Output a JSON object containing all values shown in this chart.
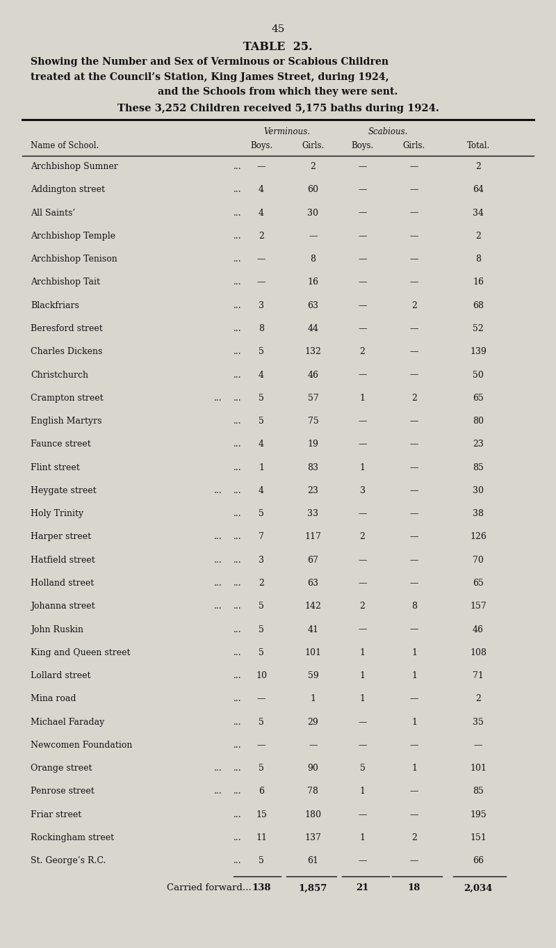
{
  "page_number": "45",
  "table_title": "TABLE  25.",
  "subtitle_line1": "Showing the Number and Sex of Verminous or Scabious Children",
  "subtitle_line2": "treated at the Council’s Station, King James Street, during 1924,",
  "subtitle_line3": "and the Schools from which they were sent.",
  "subtitle_line4": "These 3,252 Children received 5,175 baths during 1924.",
  "col_header_top_verminous": "Verminous.",
  "col_header_top_scabious": "Scabious.",
  "col_headers_bot": [
    "Boys.",
    "Girls.",
    "Boys.",
    "Girls.",
    "Total."
  ],
  "row_label_col": "Name of School.",
  "rows": [
    [
      "Archbishop Sumner",
      "...",
      "—",
      "2",
      "—",
      "—",
      "2"
    ],
    [
      "Addington street",
      "...",
      "4",
      "60",
      "—",
      "—",
      "64"
    ],
    [
      "All Saints’",
      "...",
      "4",
      "30",
      "—",
      "—",
      "34"
    ],
    [
      "Archbishop Temple",
      "...",
      "2",
      "—",
      "—",
      "—",
      "2"
    ],
    [
      "Archbishop Tenison",
      "...",
      "—",
      "8",
      "—",
      "—",
      "8"
    ],
    [
      "Archbishop Tait",
      "...",
      "—",
      "16",
      "—",
      "—",
      "16"
    ],
    [
      "Blackfriars",
      "...",
      "3",
      "63",
      "—",
      "2",
      "68"
    ],
    [
      "Beresford street",
      "...",
      "8",
      "44",
      "—",
      "—",
      "52"
    ],
    [
      "Charles Dickens",
      "...",
      "5",
      "132",
      "2",
      "—",
      "139"
    ],
    [
      "Christchurch",
      "...",
      "4",
      "46",
      "—",
      "—",
      "50"
    ],
    [
      "Crampton street...",
      "...",
      "5",
      "57",
      "1",
      "2",
      "65"
    ],
    [
      "English Martyrs",
      "...",
      "5",
      "75",
      "—",
      "—",
      "80"
    ],
    [
      "Faunce street",
      "...",
      "4",
      "19",
      "—",
      "—",
      "23"
    ],
    [
      "Flint street",
      "...",
      "1",
      "83",
      "1",
      "—",
      "85"
    ],
    [
      "Heygate street ...",
      "...",
      "4",
      "23",
      "3",
      "—",
      "30"
    ],
    [
      "Holy Trinity",
      "...",
      "5",
      "33",
      "—",
      "—",
      "38"
    ],
    [
      "Harper street ...",
      "...",
      "7",
      "117",
      "2",
      "—",
      "126"
    ],
    [
      "Hatfield street ...",
      "...",
      "3",
      "67",
      "—",
      "—",
      "70"
    ],
    [
      "Holland street ...",
      "...",
      "2",
      "63",
      "—",
      "—",
      "65"
    ],
    [
      "Johanna street ...",
      "...",
      "5",
      "142",
      "2",
      "8",
      "157"
    ],
    [
      "John Ruskin",
      "...",
      "5",
      "41",
      "—",
      "—",
      "46"
    ],
    [
      "King and Queen street",
      "...",
      "5",
      "101",
      "1",
      "1",
      "108"
    ],
    [
      "Lollard street",
      "...",
      "10",
      "59",
      "1",
      "1",
      "71"
    ],
    [
      "Mina road",
      "...",
      "—",
      "1",
      "1",
      "—",
      "2"
    ],
    [
      "Michael Faraday",
      "...",
      "5",
      "29",
      "—",
      "1",
      "35"
    ],
    [
      "Newcomen Foundation",
      "...",
      "—",
      "—",
      "—",
      "—",
      "—"
    ],
    [
      "Orange street ...",
      "...",
      "5",
      "90",
      "5",
      "1",
      "101"
    ],
    [
      "Penrose street ...",
      "...",
      "6",
      "78",
      "1",
      "—",
      "85"
    ],
    [
      "Friar street",
      "...",
      "15",
      "180",
      "—",
      "—",
      "195"
    ],
    [
      "Rockingham street",
      "...",
      "11",
      "137",
      "1",
      "2",
      "151"
    ],
    [
      "St. George’s R.C.",
      "...",
      "5",
      "61",
      "—",
      "—",
      "66"
    ]
  ],
  "footer_label": "Carried forward...",
  "footer_values": [
    "138",
    "1,857",
    "21",
    "18",
    "2,034"
  ],
  "bg_color": "#d9d6ce",
  "text_color": "#111111"
}
